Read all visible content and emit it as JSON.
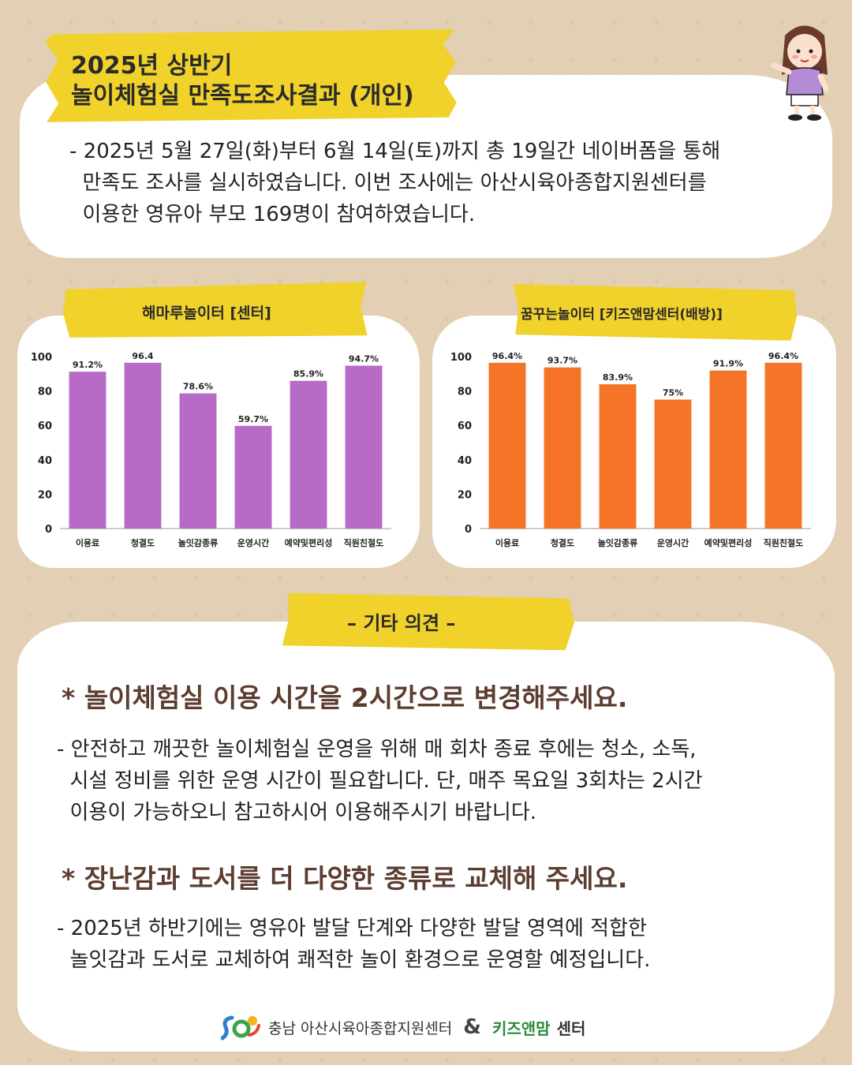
{
  "title": {
    "line1": "2025년 상반기",
    "line2": "놀이체험실 만족도조사결과 (개인)"
  },
  "intro": "- 2025년 5월 27일(화)부터 6월 14일(토)까지 총 19일간 네이버폼을 통해\n  만족도 조사를 실시하였습니다. 이번 조사에는 아산시육아종합지원센터를\n  이용한 영유아 부모 169명이 참여하였습니다.",
  "chart_left_label": "해마루놀이터 [센터]",
  "chart_right_label": "꿈꾸는놀이터 [키즈앤맘센터(배방)]",
  "chart_data": [
    {
      "type": "bar",
      "title": "해마루놀이터 [센터]",
      "categories": [
        "이용료",
        "청결도",
        "놀잇감종류",
        "운영시간",
        "예약및편리성",
        "직원친절도"
      ],
      "values": [
        91.2,
        96.4,
        78.6,
        59.7,
        85.9,
        94.7
      ],
      "data_labels": [
        "91.2%",
        "96.4",
        "78.6%",
        "59.7%",
        "85.9%",
        "94.7%"
      ],
      "yticks": [
        "0",
        "20",
        "40",
        "60",
        "80",
        "100"
      ],
      "ylim": [
        0,
        100
      ],
      "color": "#b86ac7",
      "grid": false
    },
    {
      "type": "bar",
      "title": "꿈꾸는놀이터 [키즈앤맘센터(배방)]",
      "categories": [
        "이용료",
        "청결도",
        "놀잇감종류",
        "운영시간",
        "예약및편리성",
        "직원친절도"
      ],
      "values": [
        96.4,
        93.7,
        83.9,
        75,
        91.9,
        96.4
      ],
      "data_labels": [
        "96.4%",
        "93.7%",
        "83.9%",
        "75%",
        "91.9%",
        "96.4%"
      ],
      "yticks": [
        "0",
        "20",
        "40",
        "60",
        "80",
        "100"
      ],
      "ylim": [
        0,
        100
      ],
      "color": "#f57428",
      "grid": false
    }
  ],
  "opinion": {
    "title": "– 기타 의견  –",
    "items": [
      {
        "heading": "* 놀이체험실 이용 시간을 2시간으로 변경해주세요.",
        "text": "- 안전하고 깨끗한 놀이체험실 운영을 위해 매 회차 종료 후에는 청소, 소독,\n  시설 정비를 위한 운영 시간이 필요합니다. 단, 매주 목요일 3회차는 2시간\n  이용이 가능하오니 참고하시어 이용해주시기 바랍니다."
      },
      {
        "heading": "* 장난감과 도서를 더 다양한 종류로 교체해 주세요.",
        "text": "- 2025년 하반기에는 영유아 발달 단계와 다양한 발달 영역에 적합한\n  놀잇감과 도서로 교체하여 쾌적한 놀이 환경으로 운영할 예정입니다."
      }
    ]
  },
  "footer": {
    "org": "충남 아산시육아종합지원센터",
    "amp": "&",
    "kids_logo_text": "키즈앤맘",
    "kids_center": "센터"
  },
  "colors": {
    "tape": "#f0d22b",
    "heading": "#5c3d30",
    "background": "#e2cfb4"
  }
}
